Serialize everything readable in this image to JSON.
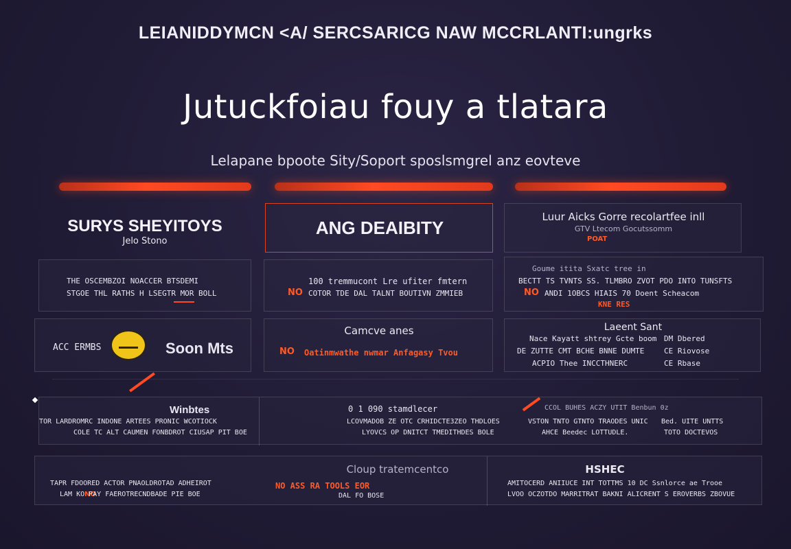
{
  "header": {
    "banner": "LEIANIDDYMCN <A/ SERCSARICG NAW MCCRLANTI:ungrks",
    "headline": "Jutuckfoiau fouy a tlatara",
    "subtitle": "Lelapane bpoote Sity/Soport sposlsmgrel anz eovteve"
  },
  "colors": {
    "background": "#221d38",
    "accent": "#ff4a22",
    "text": "#f1eef7"
  },
  "columns": [
    {
      "title": "SURYS SHEYITOYS",
      "subtitle": "Jelo  Stono",
      "rows": [
        {
          "line1": "THE OSCEMBZOI NOACCER BTSDEMI",
          "line2": "STGOE THL RATHS H LSEGTR MOR BOLL",
          "accent": ""
        },
        {
          "label": "ACC ERMBS",
          "name": "Soon Mts",
          "icon": "avatar-icon"
        }
      ]
    },
    {
      "title": "ANG DEAIBITY",
      "rows": [
        {
          "line1": "100 tremmucont Lre ufiter fmtern",
          "line2": "COTOR TDE  DAL TALNT BOUTIVN ZMMIEB",
          "accent": "NO"
        },
        {
          "heading": "Camcve anes",
          "line1": "Oatinmwathe nwmar Anfagasy Tvou",
          "accent": "NO"
        }
      ]
    },
    {
      "title": "Luur Aicks Gorre recolartfee inll",
      "subtitle": "GTV Ltecom Gocutssomm",
      "tag": "POAT",
      "rows": [
        {
          "line0": "Goume itita Sxatc tree in",
          "line1": "BECTT TS TVNTS SS. TLMBRO ZVOT PDO INTO TUNSFTS",
          "line2": "ANDI 1OBCS  HIAIS 70 Doent Scheacom",
          "line3": "KNE RES",
          "accent": "NO"
        },
        {
          "heading": "Laeent Sant",
          "line1": "Nace Kayatt shtrey Gcte boom",
          "line2": "DM Dbered",
          "line3": "DE ZUTTE CMT BCHE BNNE DUMTE",
          "line4": "CE Riovose",
          "line5": "ACPIO Thee  INCCTHNERC",
          "line6": "CE Rbase"
        }
      ]
    }
  ],
  "wide_rows": [
    {
      "name": "Winbtes",
      "cells": [
        {
          "line1": "TOR LARDROMRC INDONE ARTEES PRONIC WCOTIOCK",
          "line2": "COLE  TC ALT CAUMEN FONBDROT CIUSAP PIT BOE"
        },
        {
          "line1": "0 1 090 stamdlecer",
          "line2": "LCOVMADOB ZE OTC CRHIDCTE3ZEO THDLOES",
          "line3": "LYOVCS OP DNITCT TMEDITHDES BOLE"
        },
        {
          "line1": "CCOL BUHES ACZY UTIT Benbun 0z",
          "line2": "VSTON TNTO GTNTO TRAODES UNIC",
          "line3": "AHCE Beedec LOTTUDLE.",
          "line4": "Bed.  UITE  UNTTS",
          "line5": "TOTO DOCTEVOS"
        }
      ]
    },
    {
      "cells": [
        {
          "line1": "TAPR FDOORED ACTOR PNAOLDROTAD ADHEIROT",
          "line2": "LAM KO PAY FAEROTRECNDBADE PIE BOE",
          "accent": "NO"
        },
        {
          "heading": "Cloup tratemcentco",
          "line1": "NO  ASS RA TOOLS EOR",
          "line2": "DAL FO BOSE"
        },
        {
          "heading": "HSHEC",
          "line1": "AMITOCERD ANIIUCE INT TOTTMS 10 DC Ssnlorce ae Trooe",
          "line2": "LVOO OCZOTDO MARRITRAT BAKNI ALICRENT S EROVERBS ZBOVUE"
        }
      ]
    }
  ]
}
